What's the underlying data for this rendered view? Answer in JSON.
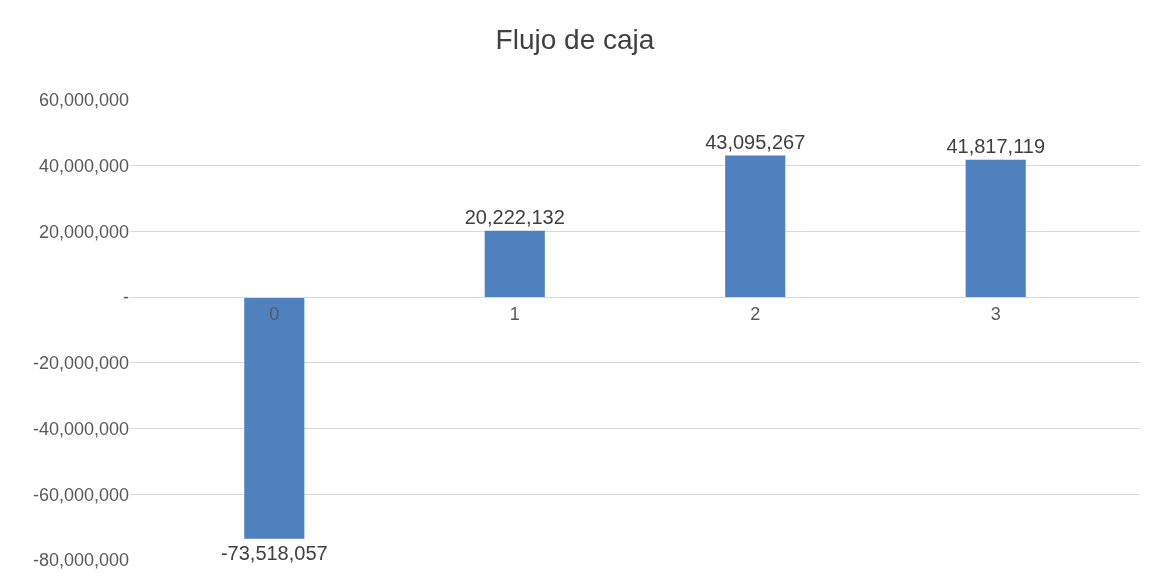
{
  "chart_data": {
    "type": "bar",
    "title": "Flujo de caja",
    "categories": [
      "0",
      "1",
      "2",
      "3"
    ],
    "values": [
      -73518057,
      20222132,
      43095267,
      41817119
    ],
    "color": "#4e81bd",
    "value_labels": [
      "-73,518,057",
      "20,222,132",
      "43,095,267",
      "41,817,119"
    ],
    "ylim": [
      -80000000,
      60000000
    ],
    "yticks": [
      {
        "value": -80000000,
        "label": "-80,000,000"
      },
      {
        "value": -60000000,
        "label": "-60,000,000"
      },
      {
        "value": -40000000,
        "label": "-40,000,000"
      },
      {
        "value": -20000000,
        "label": "-20,000,000"
      },
      {
        "value": 0,
        "label": "-"
      },
      {
        "value": 20000000,
        "label": "20,000,000"
      },
      {
        "value": 40000000,
        "label": "40,000,000"
      },
      {
        "value": 60000000,
        "label": "60,000,000"
      }
    ],
    "grid": "y"
  }
}
